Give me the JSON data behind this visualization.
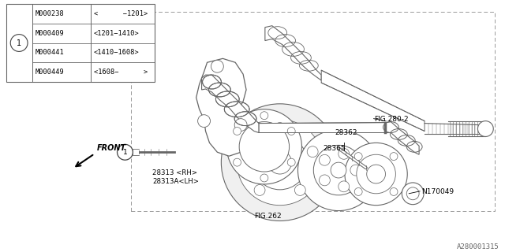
{
  "bg_color": "#ffffff",
  "line_color": "#555555",
  "text_color": "#000000",
  "watermark": "A280001315",
  "table": {
    "circle_label": "1",
    "rows": [
      [
        "M000238",
        "<      -1201>"
      ],
      [
        "M000409",
        "<1201-1410>"
      ],
      [
        "M000441",
        "<1410-1608>"
      ],
      [
        "M000449",
        "<1608-      >"
      ]
    ]
  }
}
